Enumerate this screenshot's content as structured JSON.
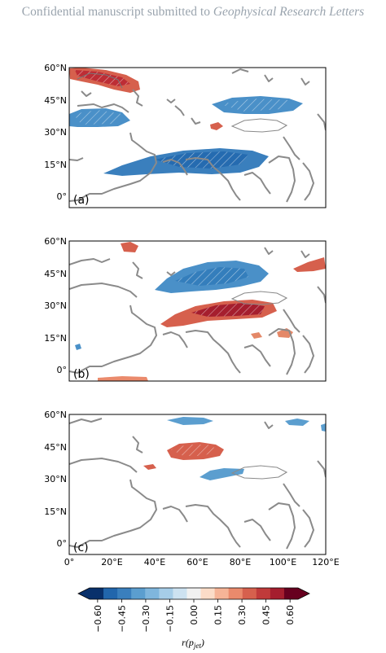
{
  "header": {
    "prefix": "Confidential manuscript submitted to ",
    "journal": "Geophysical Research Letters"
  },
  "panels": [
    {
      "id": "a",
      "label": "(a)"
    },
    {
      "id": "b",
      "label": "(b)"
    },
    {
      "id": "c",
      "label": "(c)"
    }
  ],
  "lat_ticks": [
    "60°N",
    "45°N",
    "30°N",
    "15°N",
    "0°"
  ],
  "lon_ticks": [
    "0°",
    "20°E",
    "40°E",
    "60°E",
    "80°E",
    "100°E",
    "120°E"
  ],
  "colorbar": {
    "ticks": [
      "−0.60",
      "−0.45",
      "−0.30",
      "−0.15",
      "0.00",
      "0.15",
      "0.30",
      "0.45",
      "0.60"
    ],
    "label_r": "r(p",
    "label_sub": "jet",
    "label_close": ")",
    "range": [
      -0.65,
      0.65
    ],
    "colors": [
      "#08306b",
      "#2166ac",
      "#3a7fbd",
      "#5b9ecf",
      "#7fb6dd",
      "#a6cde8",
      "#cde2f1",
      "#f1f1f1",
      "#fbdcc8",
      "#f6b497",
      "#ea8a6c",
      "#d6604d",
      "#c03a3a",
      "#a51e2e",
      "#67001f"
    ]
  }
}
